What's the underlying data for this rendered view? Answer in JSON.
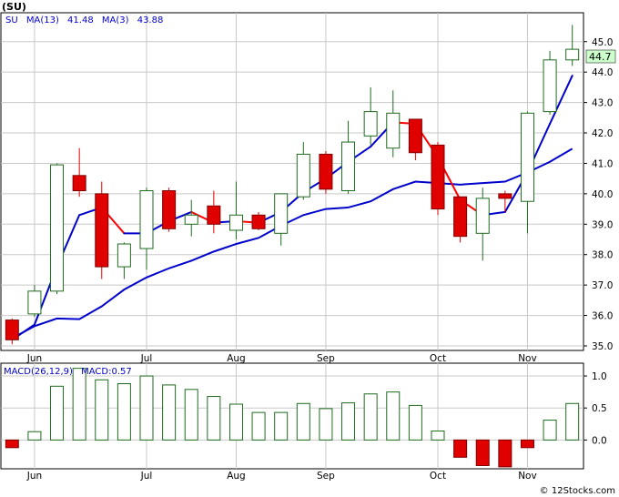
{
  "chart_title": "(SU)",
  "price_legend": {
    "symbol": "SU",
    "ma13_label": "MA(13)",
    "ma13_value": "41.48",
    "ma3_label": "MA(3)",
    "ma3_value": "43.88"
  },
  "macd_legend": {
    "label": "MACD(26,12,9)",
    "value_label": "MACD:0.57"
  },
  "last_price_badge": "44.7",
  "watermark": "© 12Stocks.com",
  "colors": {
    "up": "#1f6b1f",
    "down": "#e00000",
    "ma13": "#0000cc",
    "ma3_up": "#0000cc",
    "ma3_down": "#ff0000",
    "grid": "#c8c8c8",
    "legend": "#0000cc",
    "badge_bg": "#ccffcc"
  },
  "chart_data": [
    {
      "type": "candlestick",
      "title": "(SU)",
      "x_tick_labels": [
        "Jun",
        "Jul",
        "Aug",
        "Sep",
        "Oct",
        "Nov"
      ],
      "x_tick_index": [
        1,
        6,
        10,
        14,
        19,
        23
      ],
      "y_tick_labels": [
        "35.0",
        "36.0",
        "37.0",
        "38.0",
        "39.0",
        "40.0",
        "41.0",
        "42.0",
        "43.0",
        "44.0",
        "45.0"
      ],
      "ylim": [
        34.85,
        45.95
      ],
      "grid": true,
      "candles": [
        {
          "o": 35.85,
          "h": 35.9,
          "l": 35.05,
          "c": 35.2
        },
        {
          "o": 36.05,
          "h": 37.0,
          "l": 35.95,
          "c": 36.8
        },
        {
          "o": 36.8,
          "h": 41.0,
          "l": 36.7,
          "c": 40.95
        },
        {
          "o": 40.6,
          "h": 41.5,
          "l": 39.9,
          "c": 40.1
        },
        {
          "o": 40.0,
          "h": 40.4,
          "l": 37.2,
          "c": 37.6
        },
        {
          "o": 37.6,
          "h": 38.4,
          "l": 37.2,
          "c": 38.35
        },
        {
          "o": 38.2,
          "h": 40.2,
          "l": 37.5,
          "c": 40.1
        },
        {
          "o": 40.1,
          "h": 40.2,
          "l": 38.75,
          "c": 38.85
        },
        {
          "o": 39.0,
          "h": 39.8,
          "l": 38.6,
          "c": 39.3
        },
        {
          "o": 39.6,
          "h": 40.1,
          "l": 38.7,
          "c": 39.0
        },
        {
          "o": 38.8,
          "h": 40.4,
          "l": 38.5,
          "c": 39.3
        },
        {
          "o": 39.3,
          "h": 39.4,
          "l": 38.8,
          "c": 38.85
        },
        {
          "o": 38.7,
          "h": 40.0,
          "l": 38.3,
          "c": 40.0
        },
        {
          "o": 39.9,
          "h": 41.7,
          "l": 39.8,
          "c": 41.3
        },
        {
          "o": 41.3,
          "h": 41.4,
          "l": 40.0,
          "c": 40.15
        },
        {
          "o": 40.1,
          "h": 42.4,
          "l": 40.0,
          "c": 41.7
        },
        {
          "o": 41.9,
          "h": 43.5,
          "l": 41.6,
          "c": 42.7
        },
        {
          "o": 41.5,
          "h": 43.4,
          "l": 41.2,
          "c": 42.65
        },
        {
          "o": 42.45,
          "h": 42.45,
          "l": 41.1,
          "c": 41.35
        },
        {
          "o": 41.6,
          "h": 41.7,
          "l": 39.3,
          "c": 39.5
        },
        {
          "o": 39.9,
          "h": 39.9,
          "l": 38.4,
          "c": 38.6
        },
        {
          "o": 38.7,
          "h": 40.2,
          "l": 37.8,
          "c": 39.85
        },
        {
          "o": 40.0,
          "h": 40.1,
          "l": 39.4,
          "c": 39.85
        },
        {
          "o": 39.75,
          "h": 42.7,
          "l": 38.7,
          "c": 42.65
        },
        {
          "o": 42.7,
          "h": 44.7,
          "l": 42.6,
          "c": 44.4
        },
        {
          "o": 44.4,
          "h": 45.55,
          "l": 44.2,
          "c": 44.75
        }
      ],
      "series": [
        {
          "name": "MA(13)",
          "values": [
            35.25,
            35.65,
            35.9,
            35.88,
            36.3,
            36.85,
            37.25,
            37.55,
            37.8,
            38.1,
            38.35,
            38.55,
            38.95,
            39.3,
            39.5,
            39.55,
            39.75,
            40.15,
            40.4,
            40.35,
            40.3,
            40.35,
            40.4,
            40.7,
            41.05,
            41.48
          ]
        },
        {
          "name": "MA(3)",
          "values": [
            35.2,
            35.7,
            37.6,
            39.3,
            39.55,
            38.7,
            38.7,
            39.1,
            39.4,
            39.05,
            39.1,
            39.05,
            39.4,
            40.05,
            40.5,
            41.05,
            41.55,
            42.35,
            42.3,
            41.2,
            39.8,
            39.3,
            39.4,
            40.7,
            42.3,
            43.88
          ]
        }
      ]
    },
    {
      "type": "bar",
      "title": "MACD(26,12,9)",
      "categories": [
        "1",
        "2",
        "3",
        "4",
        "5",
        "6",
        "7",
        "8",
        "9",
        "10",
        "11",
        "12",
        "13",
        "14",
        "15",
        "16",
        "17",
        "18",
        "19",
        "20",
        "21",
        "22",
        "23",
        "24",
        "25",
        "26"
      ],
      "values": [
        -0.12,
        0.13,
        0.84,
        1.12,
        0.94,
        0.88,
        1.0,
        0.86,
        0.79,
        0.68,
        0.56,
        0.43,
        0.43,
        0.57,
        0.49,
        0.58,
        0.72,
        0.75,
        0.54,
        0.14,
        -0.27,
        -0.4,
        -0.42,
        -0.12,
        0.31,
        0.57
      ],
      "y_tick_labels": [
        "0.0",
        "0.5",
        "1.0"
      ],
      "ylim": [
        -0.45,
        1.2
      ],
      "grid": true
    }
  ]
}
